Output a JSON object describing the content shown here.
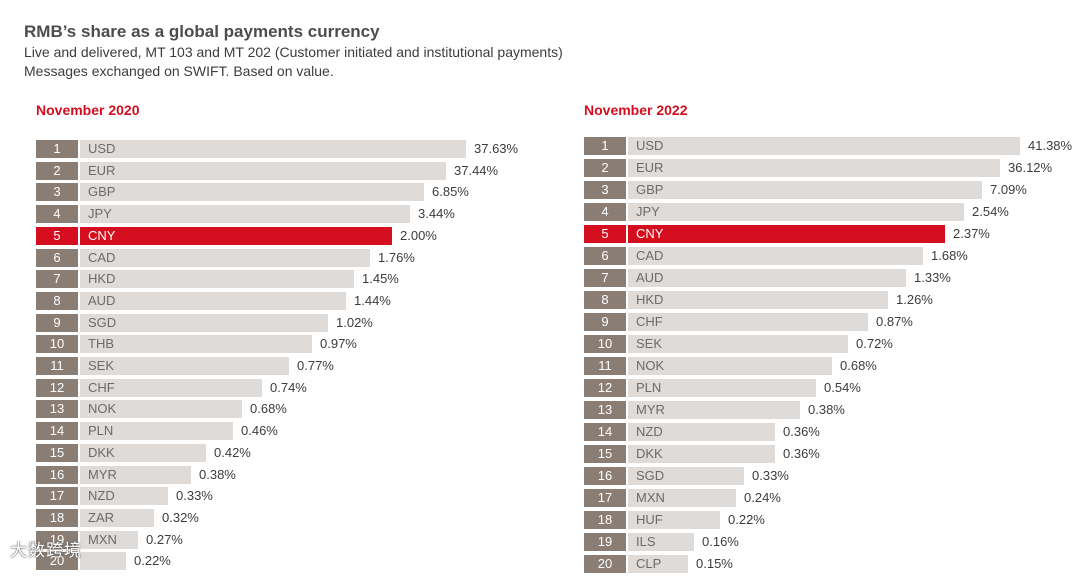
{
  "header": {
    "title": "RMB’s share as a global payments currency",
    "subtitle_line1": "Live and delivered, MT 103 and MT 202 (Customer initiated and institutional payments)",
    "subtitle_line2": "Messages exchanged on SWIFT. Based on value."
  },
  "watermark": "大数跨境",
  "colors": {
    "highlight": "#d40e1e",
    "rank_box": "#8a7d74",
    "bar": "#dedbd9"
  },
  "chart_data": [
    {
      "type": "bar",
      "orientation": "horizontal",
      "title": "November 2020",
      "highlight": "CNY",
      "ranks": [
        1,
        2,
        3,
        4,
        5,
        6,
        7,
        8,
        9,
        10,
        11,
        12,
        13,
        14,
        15,
        16,
        17,
        18,
        19,
        20
      ],
      "categories": [
        "USD",
        "EUR",
        "GBP",
        "JPY",
        "CNY",
        "CAD",
        "HKD",
        "AUD",
        "SGD",
        "THB",
        "SEK",
        "CHF",
        "NOK",
        "PLN",
        "DKK",
        "MYR",
        "NZD",
        "ZAR",
        "MXN",
        ""
      ],
      "values": [
        37.63,
        37.44,
        6.85,
        3.44,
        2.0,
        1.76,
        1.45,
        1.44,
        1.02,
        0.97,
        0.77,
        0.74,
        0.68,
        0.46,
        0.42,
        0.38,
        0.33,
        0.32,
        0.27,
        0.22
      ],
      "labels": [
        "37.63%",
        "37.44%",
        "6.85%",
        "3.44%",
        "2.00%",
        "1.76%",
        "1.45%",
        "1.44%",
        "1.02%",
        "0.97%",
        "0.77%",
        "0.74%",
        "0.68%",
        "0.46%",
        "0.42%",
        "0.38%",
        "0.33%",
        "0.32%",
        "0.27%",
        "0.22%"
      ],
      "scale": "rank-ordered, non-linear"
    },
    {
      "type": "bar",
      "orientation": "horizontal",
      "title": "November 2022",
      "highlight": "CNY",
      "ranks": [
        1,
        2,
        3,
        4,
        5,
        6,
        7,
        8,
        9,
        10,
        11,
        12,
        13,
        14,
        15,
        16,
        17,
        18,
        19,
        20
      ],
      "categories": [
        "USD",
        "EUR",
        "GBP",
        "JPY",
        "CNY",
        "CAD",
        "AUD",
        "HKD",
        "CHF",
        "SEK",
        "NOK",
        "PLN",
        "MYR",
        "NZD",
        "DKK",
        "SGD",
        "MXN",
        "HUF",
        "ILS",
        "CLP"
      ],
      "values": [
        41.38,
        36.12,
        7.09,
        2.54,
        2.37,
        1.68,
        1.33,
        1.26,
        0.87,
        0.72,
        0.68,
        0.54,
        0.38,
        0.36,
        0.36,
        0.33,
        0.24,
        0.22,
        0.16,
        0.15
      ],
      "labels": [
        "41.38%",
        "36.12%",
        "7.09%",
        "2.54%",
        "2.37%",
        "1.68%",
        "1.33%",
        "1.26%",
        "0.87%",
        "0.72%",
        "0.68%",
        "0.54%",
        "0.38%",
        "0.36%",
        "0.36%",
        "0.33%",
        "0.24%",
        "0.22%",
        "0.16%",
        "0.15%"
      ],
      "scale": "rank-ordered, non-linear"
    }
  ]
}
